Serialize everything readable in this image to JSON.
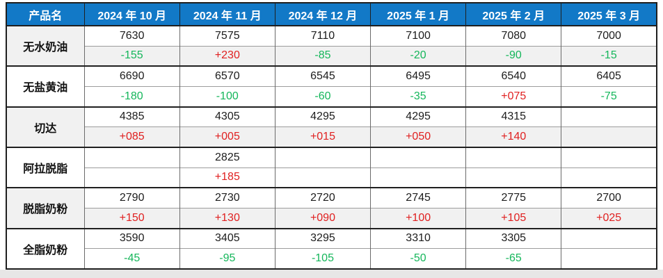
{
  "colors": {
    "header_bg": "#1279C7",
    "header_text": "#FFFFFF",
    "positive_change": "#E02020",
    "negative_change": "#14B65A",
    "shaded_row_bg": "#F1F1F1",
    "grid_dark": "#1F1F1F",
    "bottom_strip": "#E7E6E6"
  },
  "chart_data": {
    "type": "table",
    "columns": [
      "产品名",
      "2024 年 10 月",
      "2024 年 11 月",
      "2024 年 12 月",
      "2025 年 1 月",
      "2025 年 2 月",
      "2025 年 3 月"
    ],
    "products": [
      {
        "name": "无水奶油",
        "values": [
          "7630",
          "7575",
          "7110",
          "7100",
          "7080",
          "7000"
        ],
        "changes": [
          "-155",
          "+230",
          "-85",
          "-20",
          "-90",
          "-15"
        ]
      },
      {
        "name": "无盐黄油",
        "values": [
          "6690",
          "6570",
          "6545",
          "6495",
          "6540",
          "6405"
        ],
        "changes": [
          "-180",
          "-100",
          "-60",
          "-35",
          "+075",
          "-75"
        ]
      },
      {
        "name": "切达",
        "values": [
          "4385",
          "4305",
          "4295",
          "4295",
          "4315",
          ""
        ],
        "changes": [
          "+085",
          "+005",
          "+015",
          "+050",
          "+140",
          ""
        ]
      },
      {
        "name": "阿拉脱脂",
        "values": [
          "",
          "2825",
          "",
          "",
          "",
          ""
        ],
        "changes": [
          "",
          "+185",
          "",
          "",
          "",
          ""
        ]
      },
      {
        "name": "脱脂奶粉",
        "values": [
          "2790",
          "2730",
          "2720",
          "2745",
          "2775",
          "2700"
        ],
        "changes": [
          "+150",
          "+130",
          "+090",
          "+100",
          "+105",
          "+025"
        ]
      },
      {
        "name": "全脂奶粉",
        "values": [
          "3590",
          "3405",
          "3295",
          "3310",
          "3305",
          ""
        ],
        "changes": [
          "-45",
          "-95",
          "-105",
          "-50",
          "-65",
          ""
        ]
      }
    ]
  }
}
